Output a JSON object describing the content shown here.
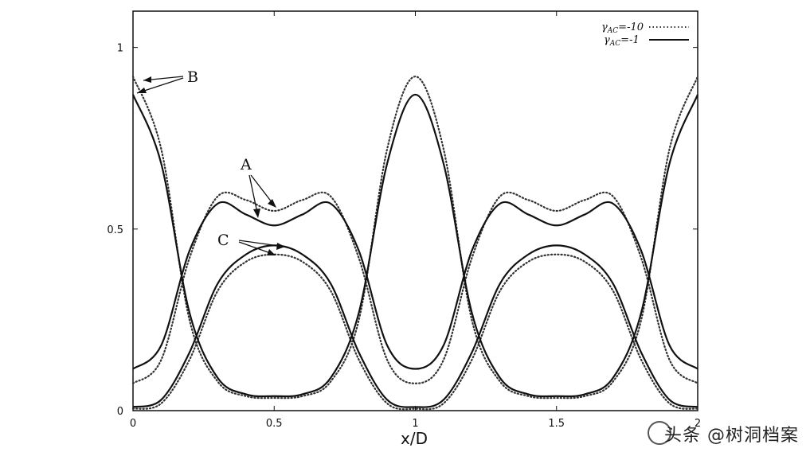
{
  "chart_data": {
    "type": "line",
    "xlabel": "x/D",
    "ylabel": "",
    "xlim": [
      0,
      2
    ],
    "ylim": [
      0,
      1.1
    ],
    "x_ticks": [
      "0",
      "0.5",
      "1",
      "1.5",
      "2"
    ],
    "y_ticks": [
      "0",
      "0.5",
      "1"
    ],
    "grid": false,
    "legend_position": "top-right",
    "series": [
      {
        "name": "γAC=-10",
        "style": "dotted",
        "x": [
          0,
          0.1,
          0.2,
          0.3,
          0.4,
          0.5,
          0.6,
          0.7,
          0.8,
          0.9,
          1.0,
          1.1,
          1.2,
          1.3,
          1.4,
          1.5,
          1.6,
          1.7,
          1.8,
          1.9,
          2.0
        ],
        "y_peak": [
          0.92,
          0.72,
          0.25,
          0.08,
          0.04,
          0.035,
          0.04,
          0.08,
          0.25,
          0.72,
          0.92,
          0.72,
          0.25,
          0.08,
          0.04,
          0.035,
          0.04,
          0.08,
          0.25,
          0.72,
          0.92
        ],
        "y_double": [
          0.075,
          0.14,
          0.42,
          0.59,
          0.58,
          0.55,
          0.58,
          0.59,
          0.42,
          0.14,
          0.075,
          0.14,
          0.42,
          0.59,
          0.58,
          0.55,
          0.58,
          0.59,
          0.42,
          0.14,
          0.075
        ],
        "y_bump": [
          0.005,
          0.02,
          0.14,
          0.33,
          0.41,
          0.43,
          0.41,
          0.33,
          0.14,
          0.02,
          0.005,
          0.02,
          0.14,
          0.33,
          0.41,
          0.43,
          0.41,
          0.33,
          0.14,
          0.02,
          0.005
        ]
      },
      {
        "name": "γAC=-1",
        "style": "solid",
        "x": [
          0,
          0.1,
          0.2,
          0.3,
          0.4,
          0.5,
          0.6,
          0.7,
          0.8,
          0.9,
          1.0,
          1.1,
          1.2,
          1.3,
          1.4,
          1.5,
          1.6,
          1.7,
          1.8,
          1.9,
          2.0
        ],
        "y_peak": [
          0.87,
          0.68,
          0.27,
          0.09,
          0.045,
          0.04,
          0.045,
          0.09,
          0.27,
          0.68,
          0.87,
          0.68,
          0.27,
          0.09,
          0.045,
          0.04,
          0.045,
          0.09,
          0.27,
          0.68,
          0.87
        ],
        "y_double": [
          0.115,
          0.18,
          0.44,
          0.57,
          0.54,
          0.51,
          0.54,
          0.57,
          0.44,
          0.18,
          0.115,
          0.18,
          0.44,
          0.57,
          0.54,
          0.51,
          0.54,
          0.57,
          0.44,
          0.18,
          0.115
        ],
        "y_bump": [
          0.01,
          0.03,
          0.16,
          0.35,
          0.43,
          0.455,
          0.43,
          0.35,
          0.16,
          0.03,
          0.01,
          0.03,
          0.16,
          0.35,
          0.43,
          0.455,
          0.43,
          0.35,
          0.16,
          0.03,
          0.01
        ]
      }
    ],
    "annotations": [
      {
        "text": "A",
        "points_to": [
          [
            0.44,
            0.53
          ],
          [
            0.5,
            0.55
          ]
        ]
      },
      {
        "text": "B",
        "points_to": [
          [
            0.02,
            0.91
          ],
          [
            0.01,
            0.88
          ]
        ]
      },
      {
        "text": "C",
        "points_to": [
          [
            0.5,
            0.45
          ],
          [
            0.48,
            0.43
          ]
        ]
      }
    ]
  },
  "legend": {
    "entry1": "γ",
    "entry1_sub": "AC",
    "entry1_rest": "=-10",
    "entry2": "γ",
    "entry2_sub": "AC",
    "entry2_rest": "=-1"
  },
  "watermark": "头条 @树洞档案",
  "colors": {
    "line": "#111111",
    "dotted": "#333333"
  }
}
